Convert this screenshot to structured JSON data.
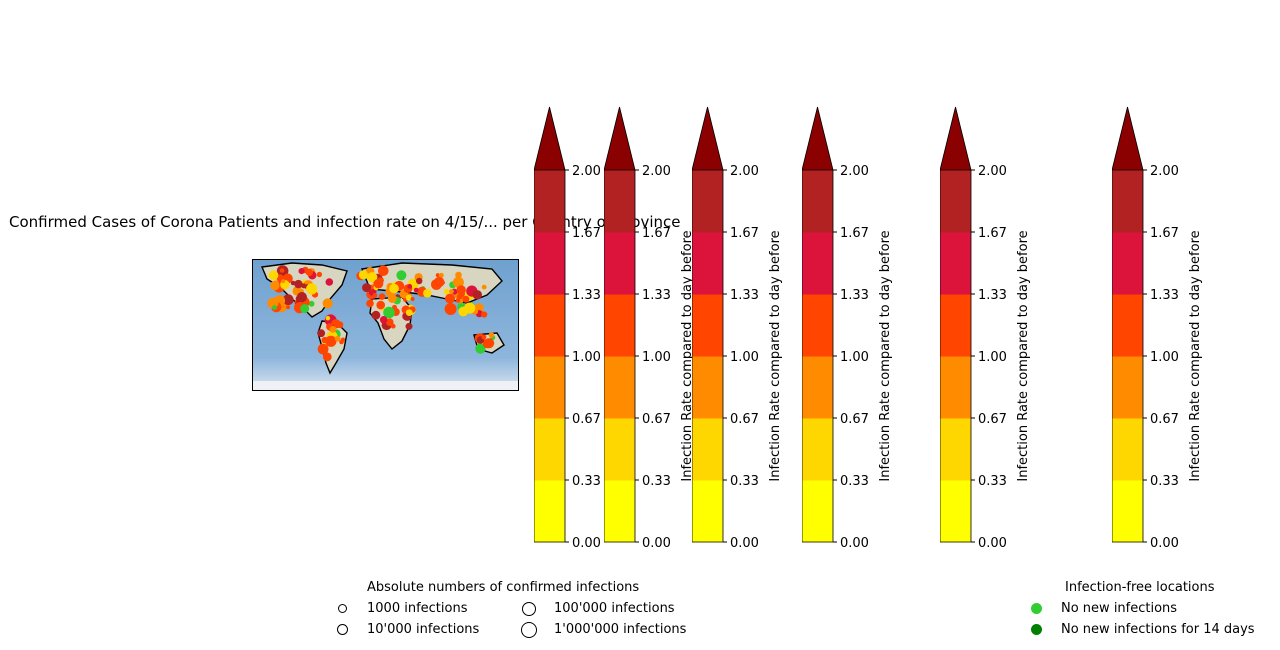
{
  "title": "Confirmed Cases of Corona Patients and infection rate on 4/15/... per Country or Province",
  "colorbars": {
    "label": "Infection Rate compared to day before",
    "ticks": [
      "2.00",
      "1.67",
      "1.33",
      "1.00",
      "0.67",
      "0.33",
      "0.00"
    ],
    "colors": [
      "#ffff00",
      "#ffd700",
      "#ff8c00",
      "#ff4500",
      "#dc143c",
      "#b22222",
      "#8b0000"
    ],
    "count": 6
  },
  "size_legend": {
    "title": "Absolute numbers of confirmed infections",
    "items": [
      "1000 infections",
      "10'000 infections",
      "100'000 infections",
      "1'000'000 infections"
    ]
  },
  "free_legend": {
    "title": "Infection-free locations",
    "items": [
      {
        "label": "No new infections",
        "color": "#32cd32"
      },
      {
        "label": "No new infections for 14 days",
        "color": "#008000"
      }
    ]
  }
}
